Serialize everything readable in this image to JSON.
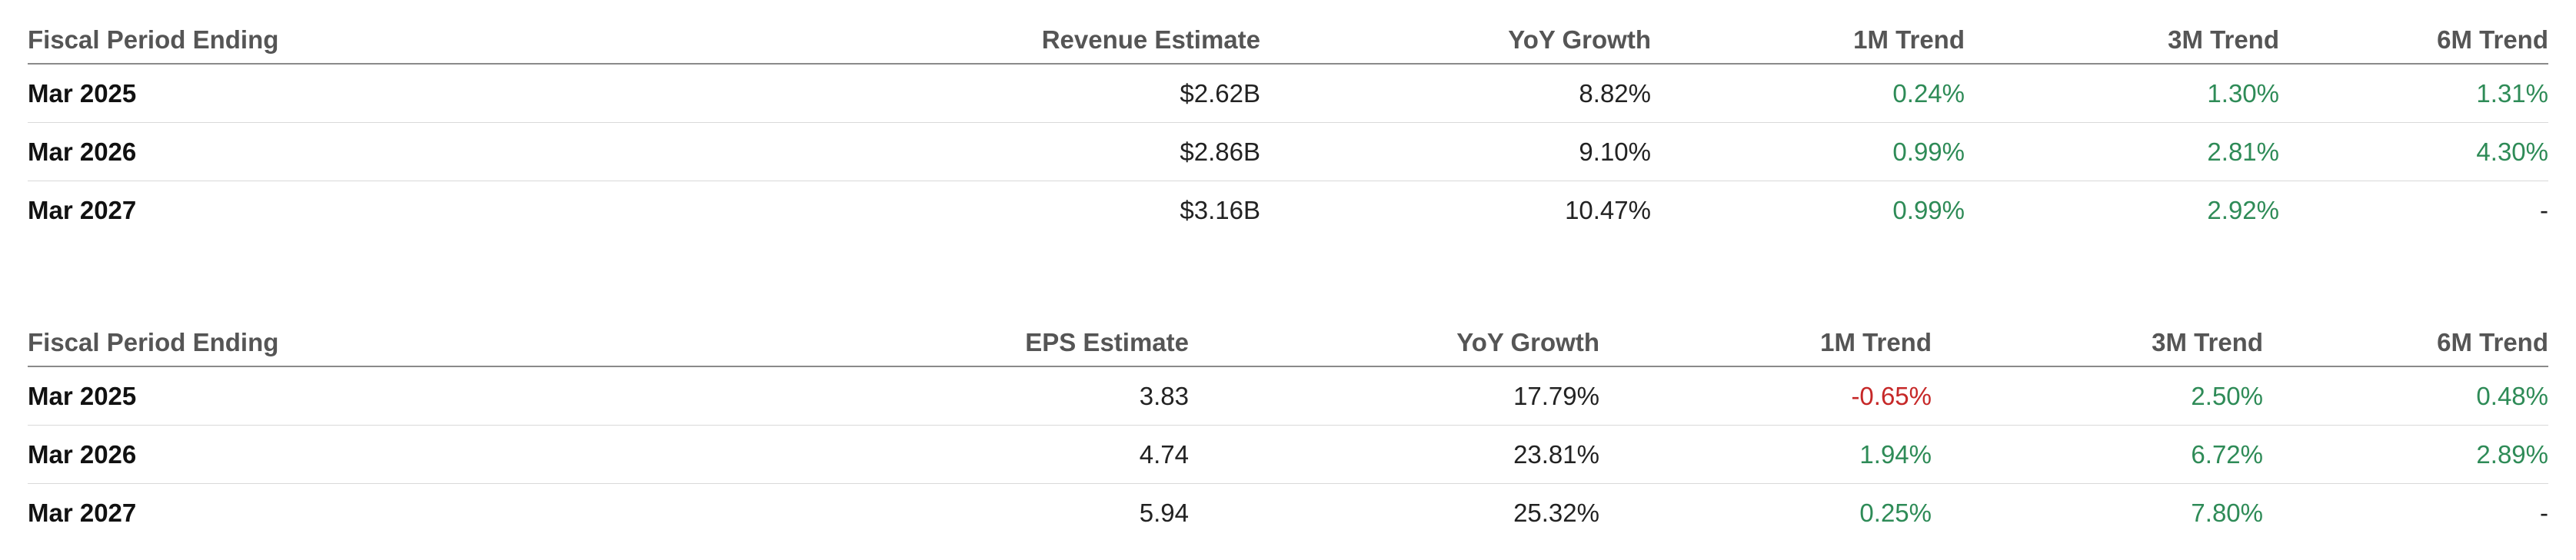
{
  "colors": {
    "positive": "#2e8b57",
    "negative": "#c62828",
    "neutral": "#222222",
    "header_text": "#555555"
  },
  "revenue": {
    "headers": [
      "Fiscal Period Ending",
      "Revenue Estimate",
      "YoY Growth",
      "1M Trend",
      "3M Trend",
      "6M Trend"
    ],
    "rows": [
      {
        "period": "Mar 2025",
        "estimate": "$2.62B",
        "yoy": "8.82%",
        "m1": "0.24%",
        "m3": "1.30%",
        "m6": "1.31%"
      },
      {
        "period": "Mar 2026",
        "estimate": "$2.86B",
        "yoy": "9.10%",
        "m1": "0.99%",
        "m3": "2.81%",
        "m6": "4.30%"
      },
      {
        "period": "Mar 2027",
        "estimate": "$3.16B",
        "yoy": "10.47%",
        "m1": "0.99%",
        "m3": "2.92%",
        "m6": "-"
      }
    ]
  },
  "eps": {
    "headers": [
      "Fiscal Period Ending",
      "EPS Estimate",
      "YoY Growth",
      "1M Trend",
      "3M Trend",
      "6M Trend"
    ],
    "rows": [
      {
        "period": "Mar 2025",
        "estimate": "3.83",
        "yoy": "17.79%",
        "m1": "-0.65%",
        "m3": "2.50%",
        "m6": "0.48%"
      },
      {
        "period": "Mar 2026",
        "estimate": "4.74",
        "yoy": "23.81%",
        "m1": "1.94%",
        "m3": "6.72%",
        "m6": "2.89%"
      },
      {
        "period": "Mar 2027",
        "estimate": "5.94",
        "yoy": "25.32%",
        "m1": "0.25%",
        "m3": "7.80%",
        "m6": "-"
      }
    ]
  }
}
